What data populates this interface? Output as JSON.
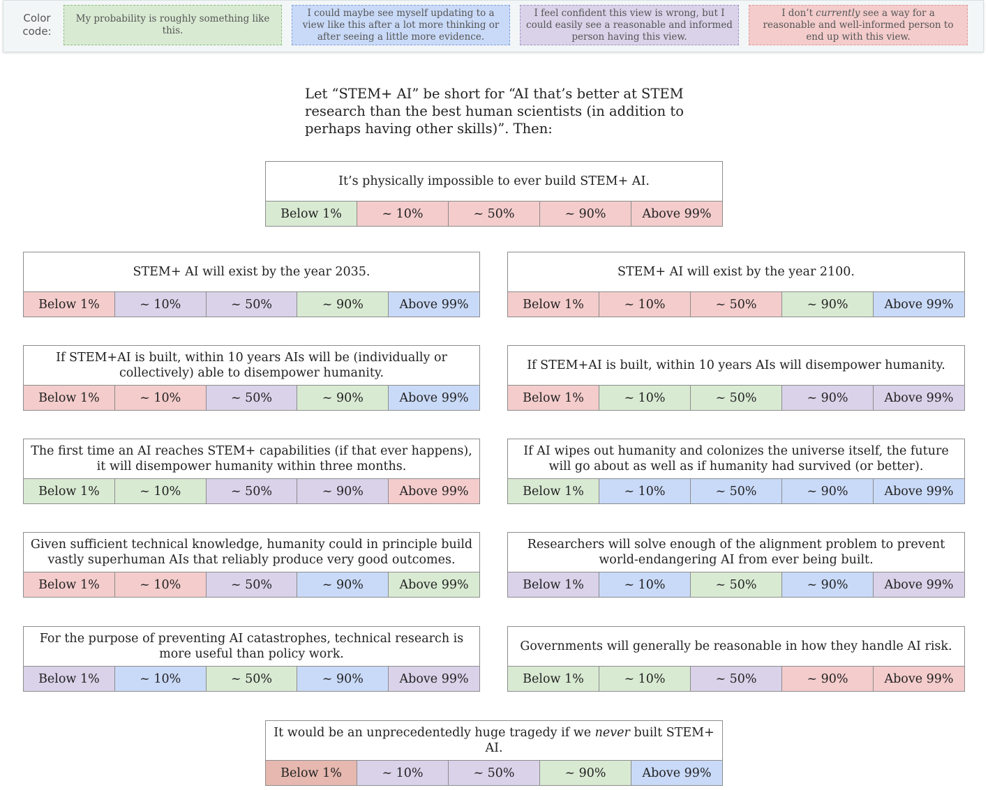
{
  "legend": {
    "title": "Color code:",
    "items": [
      {
        "key": "green",
        "text": "My probability is roughly something like this."
      },
      {
        "key": "blue",
        "text": "I could maybe see myself updating to a view like this after a lot more thinking or after seeing a little more evidence."
      },
      {
        "key": "purple",
        "text": "I feel confident this view is wrong, but I could easily see a reasonable and informed person having this view."
      },
      {
        "key": "red",
        "text_before": "I don’t ",
        "text_emph": "currently",
        "text_after": " see a way for a reasonable and well-informed person to end up with this view."
      }
    ],
    "colors": {
      "green": "#d9ead3",
      "blue": "#c9daf8",
      "purple": "#d9d2e9",
      "red": "#f4cccc",
      "darkred": "#e6b8af"
    }
  },
  "intro": "Let “STEM+ AI” be short for “AI that’s better at STEM research than the best human scientists (in addition to perhaps having other skills)”. Then:",
  "option_labels": [
    "Below 1%",
    "~ 10%",
    "~ 50%",
    "~ 90%",
    "Above 99%"
  ],
  "statements": [
    {
      "text": "It’s physically impossible to ever build STEM+ AI.",
      "colors": [
        "green",
        "red",
        "red",
        "red",
        "red"
      ]
    },
    {
      "text": "STEM+ AI will exist by the year 2035.",
      "colors": [
        "red",
        "purple",
        "purple",
        "green",
        "blue"
      ]
    },
    {
      "text": "STEM+ AI will exist by the year 2100.",
      "colors": [
        "red",
        "red",
        "red",
        "green",
        "blue"
      ]
    },
    {
      "text": "If STEM+AI is built, within 10 years AIs will be (individually or collectively) able to disempower humanity.",
      "colors": [
        "red",
        "red",
        "purple",
        "green",
        "blue"
      ]
    },
    {
      "text": "If STEM+AI is built, within 10 years AIs will disempower humanity.",
      "colors": [
        "red",
        "green",
        "green",
        "purple",
        "purple"
      ]
    },
    {
      "text": "The first time an AI reaches STEM+ capabilities (if that ever happens), it will disempower humanity within three months.",
      "colors": [
        "green",
        "green",
        "purple",
        "purple",
        "red"
      ]
    },
    {
      "text": "If AI wipes out humanity and colonizes the universe itself, the future will go about as well as if humanity had survived (or better).",
      "colors": [
        "green",
        "blue",
        "blue",
        "blue",
        "blue"
      ]
    },
    {
      "text": "Given sufficient technical knowledge, humanity could in principle build vastly superhuman AIs that reliably produce very good outcomes.",
      "colors": [
        "red",
        "red",
        "purple",
        "blue",
        "green"
      ]
    },
    {
      "text": "Researchers will solve enough of the alignment problem to prevent world-endangering AI from ever being built.",
      "colors": [
        "purple",
        "blue",
        "green",
        "blue",
        "purple"
      ]
    },
    {
      "text": "For the purpose of preventing AI catastrophes, technical research is more useful than policy work.",
      "colors": [
        "purple",
        "blue",
        "green",
        "blue",
        "purple"
      ]
    },
    {
      "text": "Governments will generally be reasonable in how they handle AI risk.",
      "colors": [
        "green",
        "green",
        "purple",
        "red",
        "red"
      ]
    },
    {
      "text_before": "It would be an unprecedentedly huge tragedy if we ",
      "text_emph": "never",
      "text_after": " built STEM+ AI.",
      "colors": [
        "darkred",
        "purple",
        "purple",
        "green",
        "blue"
      ]
    }
  ]
}
